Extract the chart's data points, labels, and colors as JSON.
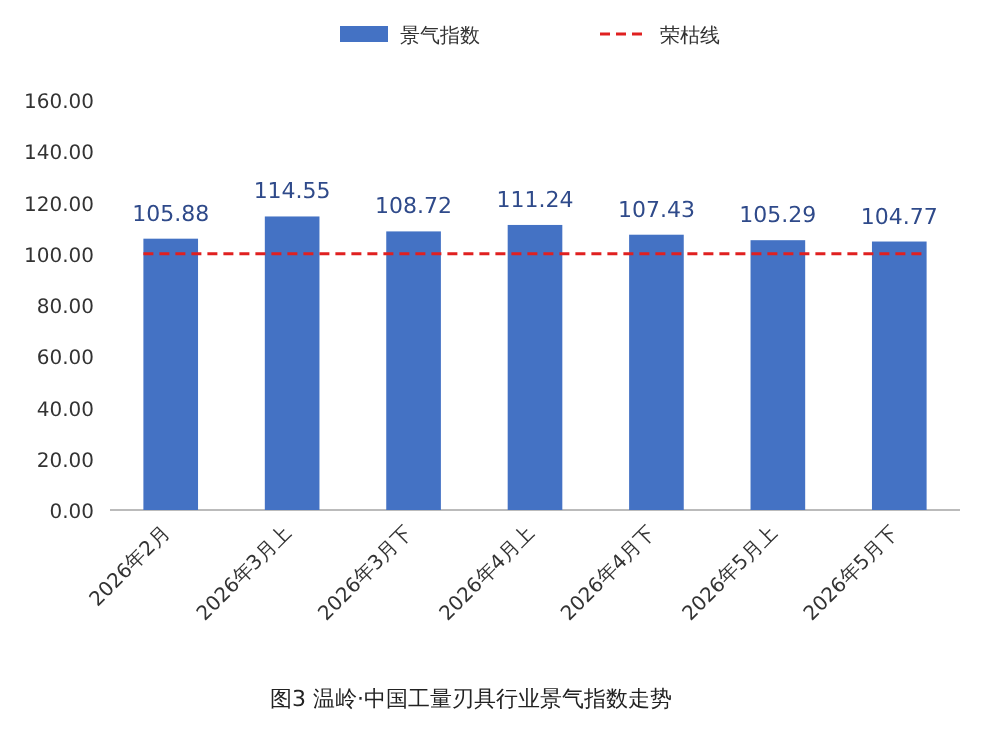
{
  "chart_data": {
    "type": "bar",
    "categories": [
      "2026年2月",
      "2026年3月上",
      "2026年3月下",
      "2026年4月上",
      "2026年4月下",
      "2026年5月上",
      "2026年5月下"
    ],
    "series": [
      {
        "name": "景气指数",
        "color": "#4472c4",
        "values": [
          105.88,
          114.55,
          108.72,
          111.24,
          107.43,
          105.29,
          104.77
        ]
      }
    ],
    "data_labels": true,
    "ylim": [
      0,
      160
    ],
    "yticks": [
      {
        "value": 0,
        "label": "0.00"
      },
      {
        "value": 20,
        "label": "20.00"
      },
      {
        "value": 40,
        "label": "40.00"
      },
      {
        "value": 60,
        "label": "60.00"
      },
      {
        "value": 80,
        "label": "80.00"
      },
      {
        "value": 100,
        "label": "100.00"
      },
      {
        "value": 120,
        "label": "120.00"
      },
      {
        "value": 140,
        "label": "140.00"
      },
      {
        "value": 160,
        "label": "160.00"
      }
    ],
    "ref_lines": [
      {
        "axis": "y",
        "value": 100,
        "label": "荣枯线",
        "color": "#e02020",
        "line_style": "dashed"
      }
    ],
    "legend": "top",
    "annotations": [
      "图3 温岭·中国工量刃具行业景气指数走势"
    ]
  }
}
